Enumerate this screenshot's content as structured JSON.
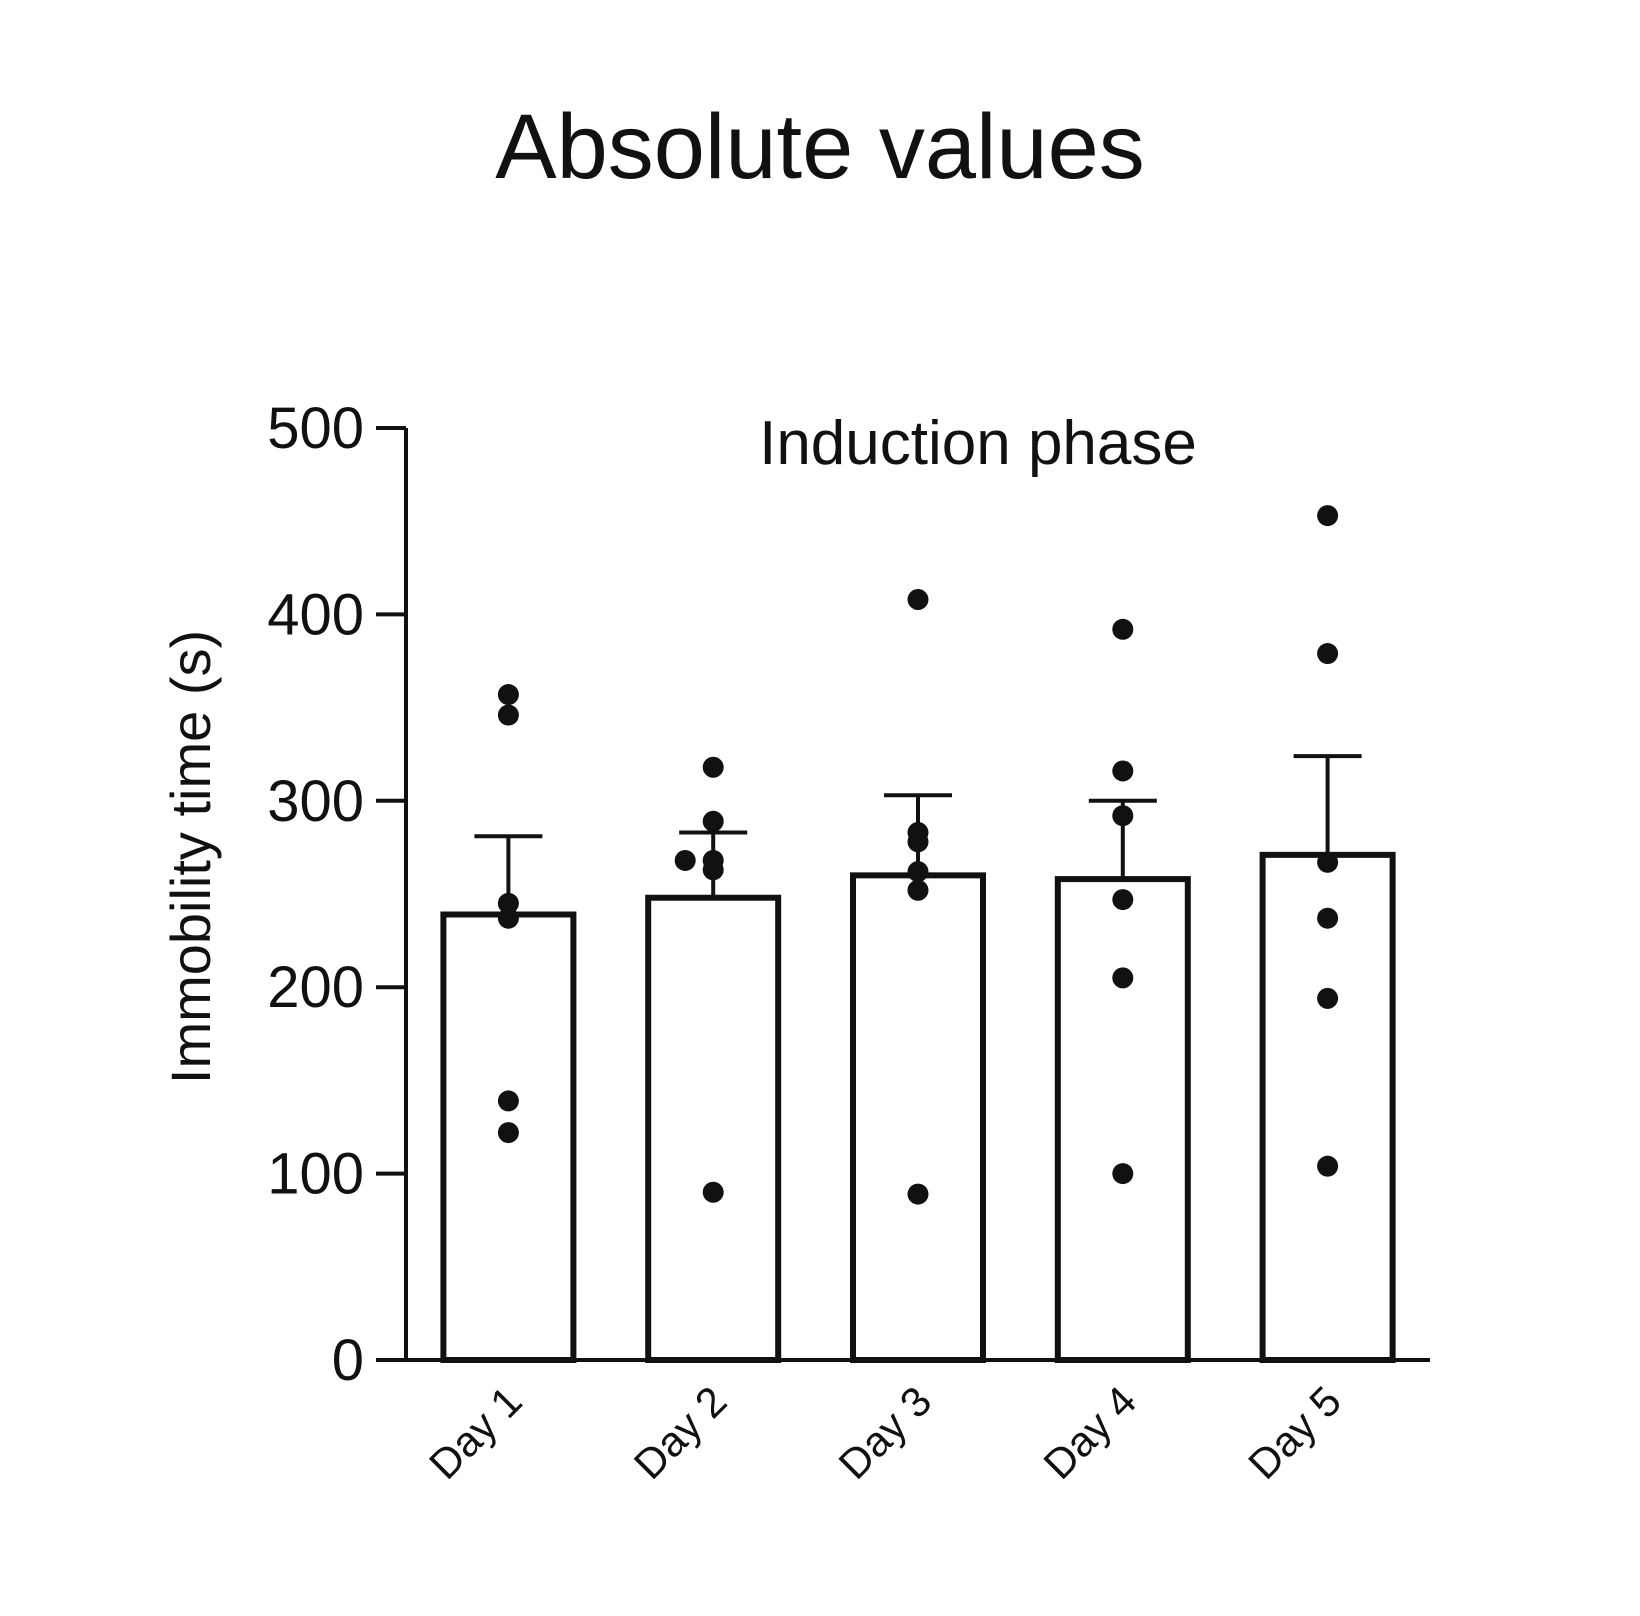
{
  "chart_data": {
    "type": "bar",
    "title": "Absolute values",
    "annotation": "Induction phase",
    "xlabel": "",
    "ylabel": "Immobility time (s)",
    "ylim": [
      0,
      500
    ],
    "yticks": [
      "0",
      "100",
      "200",
      "300",
      "400",
      "500"
    ],
    "categories": [
      "Day 1",
      "Day 2",
      "Day 3",
      "Day 4",
      "Day 5"
    ],
    "series": [
      {
        "values": [
          239,
          248,
          260,
          258,
          271
        ],
        "sem": [
          42,
          35,
          43,
          42,
          53
        ],
        "points": [
          [
            357,
            346,
            245,
            237,
            139,
            122
          ],
          [
            318,
            289,
            268,
            268,
            263,
            90
          ],
          [
            408,
            283,
            278,
            262,
            252,
            89
          ],
          [
            392,
            316,
            292,
            247,
            205,
            100
          ],
          [
            453,
            379,
            267,
            237,
            194,
            104
          ]
        ]
      }
    ],
    "grid": false,
    "legend": "none",
    "colors": {
      "stroke": "#111111",
      "bar_fill": "#ffffff",
      "point": "#111111"
    }
  }
}
